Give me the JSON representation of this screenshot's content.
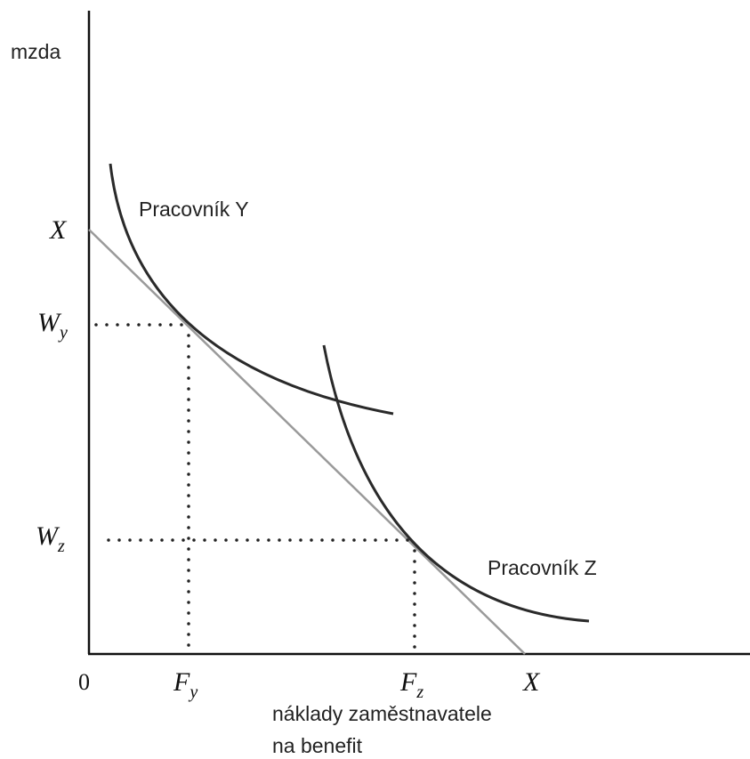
{
  "y_axis_label": "mzda",
  "x_axis_label_line1": "náklady zaměstnavatele",
  "x_axis_label_line2": "na benefit",
  "origin_label": "0",
  "y_intercept_label": "X",
  "x_intercept_label": "X",
  "wage_labels": {
    "wy_main": "W",
    "wy_sub": "y",
    "wz_main": "W",
    "wz_sub": "z"
  },
  "benefit_labels": {
    "fy_main": "F",
    "fy_sub": "y",
    "fz_main": "F",
    "fz_sub": "z"
  },
  "curve_y_label": "Pracovník Y",
  "curve_z_label": "Pracovník Z",
  "colors": {
    "axis": "#111111",
    "curve": "#2a2a2a",
    "budget_line": "#9a9a9a",
    "dots": "#222222"
  }
}
